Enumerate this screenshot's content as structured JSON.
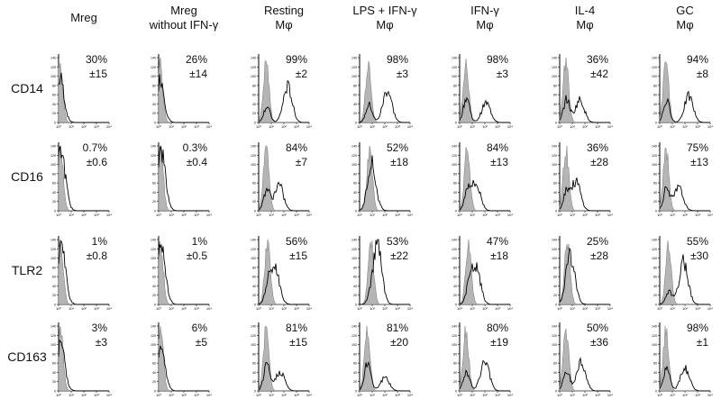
{
  "chart_data": {
    "type": "histogram-grid",
    "title": "",
    "x_scale": "log",
    "x_ticks": [
      "10⁰",
      "10¹",
      "10²",
      "10³",
      "10⁴"
    ],
    "y_ticks": [
      "0",
      "20",
      "40",
      "60",
      "80",
      "100",
      "120",
      "140"
    ],
    "columns": [
      {
        "line1": "Mreg",
        "line2": ""
      },
      {
        "line1": "Mreg",
        "line2": "without IFN-γ"
      },
      {
        "line1": "Resting",
        "line2": "Mφ"
      },
      {
        "line1": "LPS + IFN-γ",
        "line2": "Mφ"
      },
      {
        "line1": "IFN-γ",
        "line2": "Mφ"
      },
      {
        "line1": "IL-4",
        "line2": "Mφ"
      },
      {
        "line1": "GC",
        "line2": "Mφ"
      }
    ],
    "rows": [
      {
        "label": "CD14",
        "values": [
          {
            "pct": "30%",
            "sd": "±15",
            "iso_peak": 0.1,
            "stain_peak": 0.15,
            "stain_height": 0.3
          },
          {
            "pct": "26%",
            "sd": "±14",
            "iso_peak": 0.1,
            "stain_peak": 0.15,
            "stain_height": 0.3
          },
          {
            "pct": "99%",
            "sd": "±2",
            "iso_peak": 0.6,
            "stain_peak": 2.3,
            "stain_height": 0.55
          },
          {
            "pct": "98%",
            "sd": "±3",
            "iso_peak": 0.7,
            "stain_peak": 2.2,
            "stain_height": 0.5
          },
          {
            "pct": "98%",
            "sd": "±3",
            "iso_peak": 0.5,
            "stain_peak": 2.1,
            "stain_height": 0.3
          },
          {
            "pct": "36%",
            "sd": "±42",
            "iso_peak": 0.5,
            "stain_peak": 1.6,
            "stain_height": 0.35
          },
          {
            "pct": "94%",
            "sd": "±8",
            "iso_peak": 0.5,
            "stain_peak": 2.3,
            "stain_height": 0.4
          }
        ]
      },
      {
        "label": "CD16",
        "values": [
          {
            "pct": "0.7%",
            "sd": "±0.6",
            "iso_peak": 0.15,
            "stain_peak": 0.2,
            "stain_height": 0.8
          },
          {
            "pct": "0.3%",
            "sd": "±0.4",
            "iso_peak": 0.15,
            "stain_peak": 0.2,
            "stain_height": 0.8
          },
          {
            "pct": "84%",
            "sd": "±7",
            "iso_peak": 0.6,
            "stain_peak": 1.6,
            "stain_height": 0.4
          },
          {
            "pct": "52%",
            "sd": "±18",
            "iso_peak": 0.8,
            "stain_peak": 1.0,
            "stain_height": 0.5
          },
          {
            "pct": "84%",
            "sd": "±13",
            "iso_peak": 0.6,
            "stain_peak": 1.3,
            "stain_height": 0.4
          },
          {
            "pct": "36%",
            "sd": "±28",
            "iso_peak": 0.5,
            "stain_peak": 1.3,
            "stain_height": 0.45
          },
          {
            "pct": "75%",
            "sd": "±13",
            "iso_peak": 0.5,
            "stain_peak": 1.5,
            "stain_height": 0.35
          }
        ]
      },
      {
        "label": "TLR2",
        "values": [
          {
            "pct": "1%",
            "sd": "±0.8",
            "iso_peak": 0.15,
            "stain_peak": 0.2,
            "stain_height": 0.8
          },
          {
            "pct": "1%",
            "sd": "±0.5",
            "iso_peak": 0.15,
            "stain_peak": 0.2,
            "stain_height": 0.8
          },
          {
            "pct": "56%",
            "sd": "±15",
            "iso_peak": 0.7,
            "stain_peak": 1.3,
            "stain_height": 0.55
          },
          {
            "pct": "53%",
            "sd": "±22",
            "iso_peak": 0.9,
            "stain_peak": 1.4,
            "stain_height": 0.9
          },
          {
            "pct": "47%",
            "sd": "±18",
            "iso_peak": 0.7,
            "stain_peak": 1.3,
            "stain_height": 0.55
          },
          {
            "pct": "25%",
            "sd": "±28",
            "iso_peak": 0.6,
            "stain_peak": 0.9,
            "stain_height": 0.6
          },
          {
            "pct": "55%",
            "sd": "±30",
            "iso_peak": 0.7,
            "stain_peak": 1.9,
            "stain_height": 0.65
          }
        ]
      },
      {
        "label": "CD163",
        "values": [
          {
            "pct": "3%",
            "sd": "±3",
            "iso_peak": 0.15,
            "stain_peak": 0.2,
            "stain_height": 0.4
          },
          {
            "pct": "6%",
            "sd": "±5",
            "iso_peak": 0.15,
            "stain_peak": 0.2,
            "stain_height": 0.4
          },
          {
            "pct": "81%",
            "sd": "±15",
            "iso_peak": 0.6,
            "stain_peak": 1.7,
            "stain_height": 0.3
          },
          {
            "pct": "81%",
            "sd": "±20",
            "iso_peak": 0.6,
            "stain_peak": 2.0,
            "stain_height": 0.2
          },
          {
            "pct": "80%",
            "sd": "±19",
            "iso_peak": 0.5,
            "stain_peak": 2.0,
            "stain_height": 0.45
          },
          {
            "pct": "50%",
            "sd": "±36",
            "iso_peak": 0.5,
            "stain_peak": 1.7,
            "stain_height": 0.45
          },
          {
            "pct": "98%",
            "sd": "±1",
            "iso_peak": 0.5,
            "stain_peak": 2.0,
            "stain_height": 0.35
          }
        ]
      }
    ]
  }
}
